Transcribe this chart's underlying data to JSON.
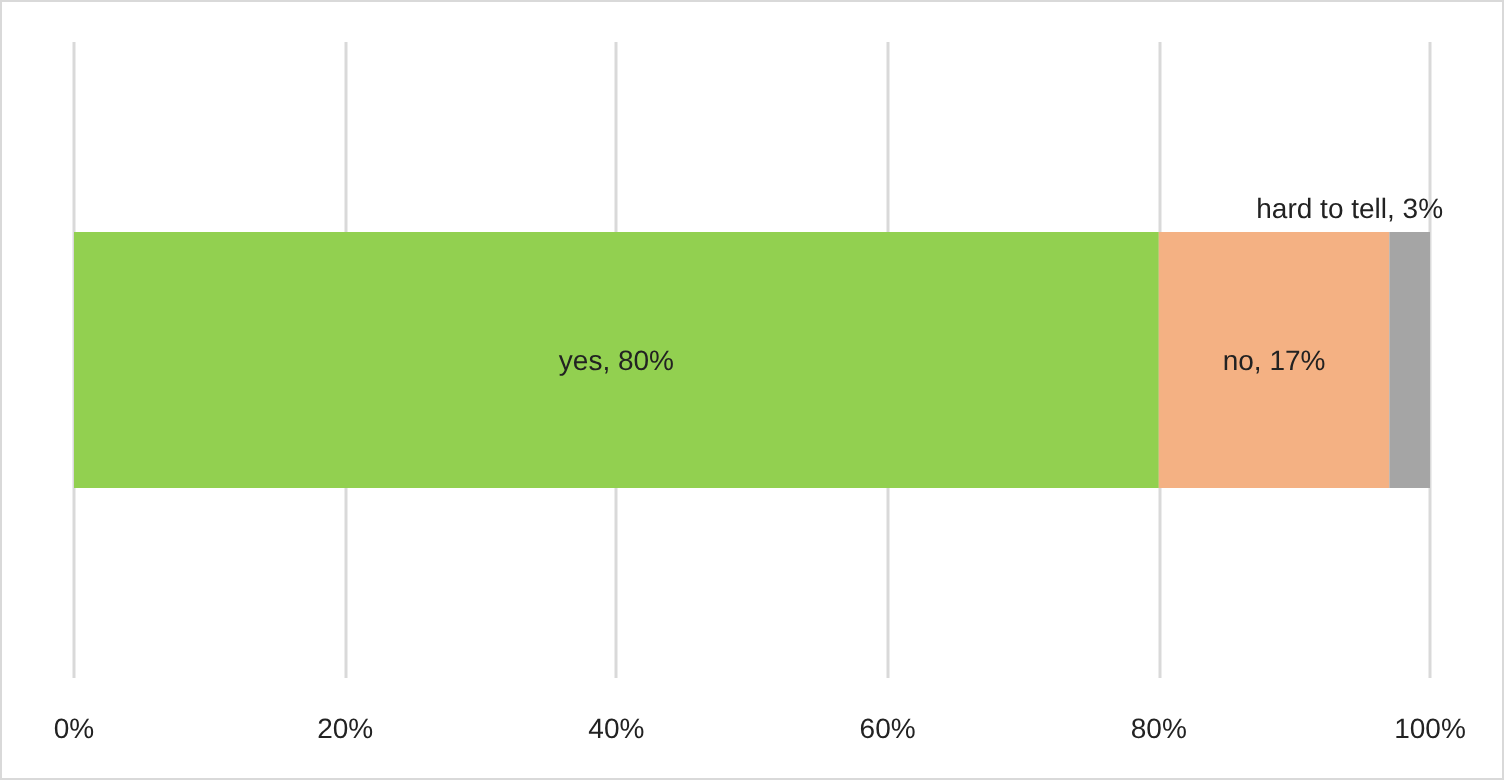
{
  "chart_data": {
    "type": "bar",
    "orientation": "horizontal",
    "stacked": true,
    "categories": [
      null
    ],
    "series": [
      {
        "color": "#92d050",
        "values": [
          80
        ],
        "value_labels": [
          "yes, 80%"
        ]
      },
      {
        "color": "#f4b183",
        "values": [
          17
        ],
        "value_labels": [
          "no, 17%"
        ]
      },
      {
        "color": "#a5a5a5",
        "values": [
          3
        ],
        "value_labels": [
          "hard to tell, 3%"
        ]
      }
    ],
    "xlim": [
      0,
      100
    ],
    "xticks": [
      {
        "value": 0,
        "label": "0%"
      },
      {
        "value": 20,
        "label": "20%"
      },
      {
        "value": 40,
        "label": "40%"
      },
      {
        "value": 60,
        "label": "60%"
      },
      {
        "value": 80,
        "label": "80%"
      },
      {
        "value": 100,
        "label": "100%"
      }
    ],
    "grid": "x"
  }
}
